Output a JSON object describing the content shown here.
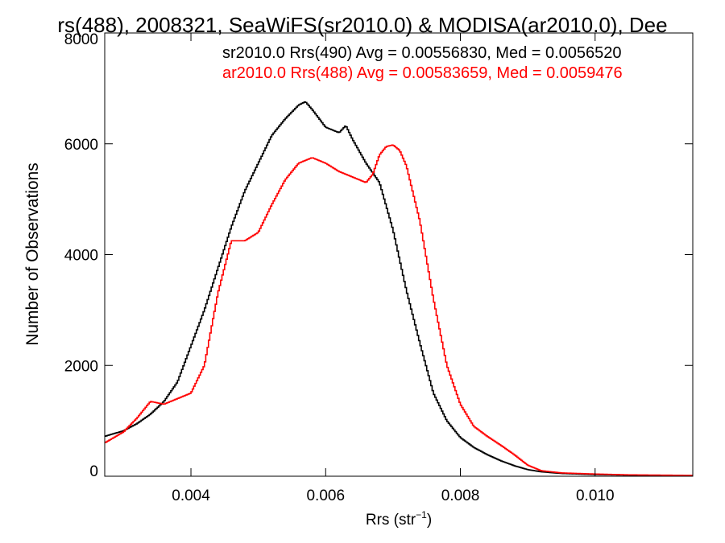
{
  "chart_data": {
    "type": "line",
    "title": "rs(488), 2008321, SeaWiFS(sr2010.0) & MODISA(ar2010.0), Dee",
    "xlabel": "Rrs (str",
    "xlabel_sup": "−1",
    "xlabel_end": ")",
    "ylabel": "Number of Observations",
    "xlim": [
      0.00272,
      0.01145
    ],
    "ylim": [
      0,
      8000
    ],
    "xticks": [
      {
        "value": 0.004,
        "label": "0.004"
      },
      {
        "value": 0.006,
        "label": "0.006"
      },
      {
        "value": 0.008,
        "label": "0.008"
      },
      {
        "value": 0.01,
        "label": "0.010"
      }
    ],
    "yticks": [
      {
        "value": 0,
        "label": "0"
      },
      {
        "value": 2000,
        "label": "2000"
      },
      {
        "value": 4000,
        "label": "4000"
      },
      {
        "value": 6000,
        "label": "6000"
      },
      {
        "value": 8000,
        "label": "8000"
      }
    ],
    "legend_position": "top-right",
    "grid": false,
    "series": [
      {
        "name": "sr2010.0 Rrs(490) Avg = 0.00556830, Med = 0.0056520",
        "color": "#000000",
        "x": [
          0.00272,
          0.003,
          0.0032,
          0.0034,
          0.0036,
          0.0038,
          0.004,
          0.0042,
          0.0044,
          0.0046,
          0.0048,
          0.005,
          0.0052,
          0.0054,
          0.0056,
          0.0057,
          0.0058,
          0.006,
          0.0062,
          0.0063,
          0.0064,
          0.0066,
          0.0068,
          0.007,
          0.0072,
          0.0074,
          0.0076,
          0.0078,
          0.008,
          0.0082,
          0.0084,
          0.0086,
          0.0088,
          0.009,
          0.0092,
          0.0095,
          0.01,
          0.0105,
          0.01145
        ],
        "values": [
          720,
          820,
          950,
          1120,
          1350,
          1700,
          2350,
          3000,
          3750,
          4500,
          5150,
          5650,
          6150,
          6450,
          6700,
          6760,
          6620,
          6300,
          6200,
          6330,
          6080,
          5650,
          5300,
          4450,
          3350,
          2400,
          1500,
          1000,
          700,
          520,
          390,
          280,
          190,
          120,
          80,
          50,
          30,
          20,
          10
        ]
      },
      {
        "name": "ar2010.0 Rrs(488) Avg = 0.00583659, Med = 0.0059476",
        "color": "#ff0000",
        "x": [
          0.00272,
          0.003,
          0.0032,
          0.0034,
          0.0036,
          0.0038,
          0.004,
          0.0042,
          0.0044,
          0.0046,
          0.0048,
          0.005,
          0.0052,
          0.0054,
          0.0056,
          0.0058,
          0.006,
          0.0062,
          0.0064,
          0.0066,
          0.0067,
          0.0068,
          0.0069,
          0.007,
          0.0071,
          0.0072,
          0.0074,
          0.0076,
          0.0078,
          0.008,
          0.0082,
          0.0084,
          0.0086,
          0.0088,
          0.009,
          0.0092,
          0.0095,
          0.01,
          0.0105,
          0.01145
        ],
        "values": [
          600,
          800,
          1050,
          1350,
          1300,
          1400,
          1500,
          2000,
          3300,
          4250,
          4250,
          4400,
          4900,
          5350,
          5650,
          5750,
          5650,
          5500,
          5400,
          5300,
          5450,
          5800,
          5950,
          5980,
          5880,
          5600,
          4600,
          3200,
          2000,
          1300,
          900,
          720,
          560,
          390,
          200,
          100,
          60,
          40,
          25,
          15
        ]
      }
    ]
  }
}
